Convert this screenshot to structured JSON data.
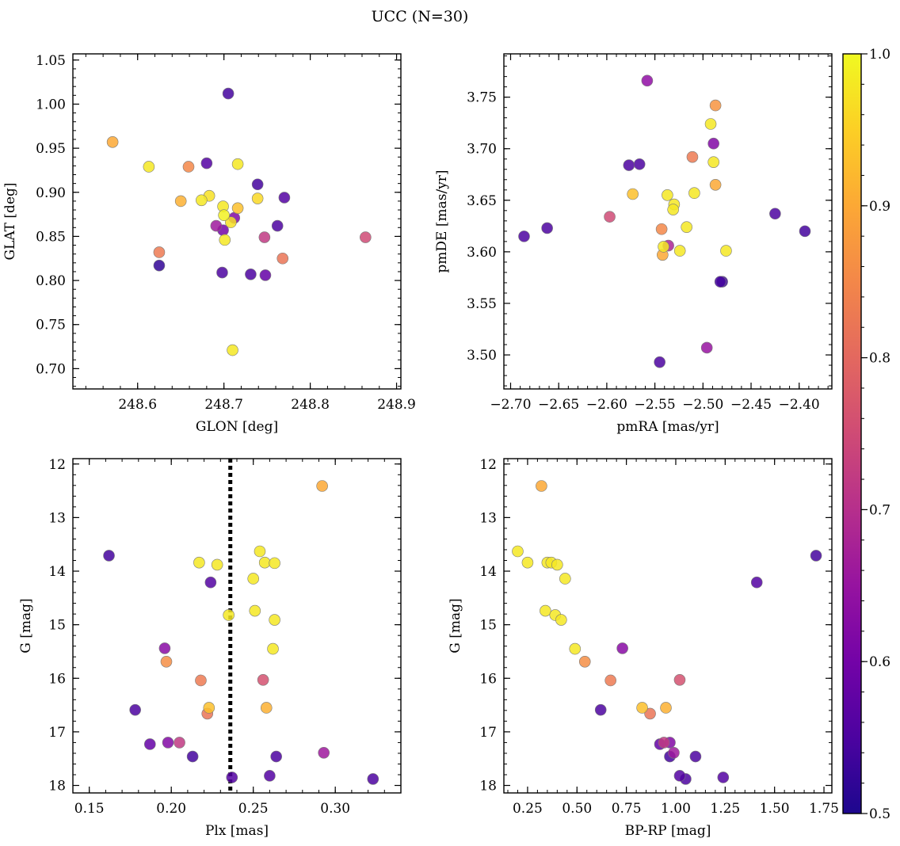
{
  "figure": {
    "title": "UCC (N=30)"
  },
  "colorbar": {
    "min": 0.5,
    "max": 1.0,
    "ticks": [
      0.5,
      0.6,
      0.7,
      0.8,
      0.9,
      1.0
    ],
    "tick_labels": [
      "0.5",
      "0.6",
      "0.7",
      "0.8",
      "0.9",
      "1.0"
    ],
    "colormap": "plasma"
  },
  "chart_data": [
    {
      "type": "scatter",
      "xlabel": "GLON [deg]",
      "ylabel": "GLAT [deg]",
      "xlim": [
        248.525,
        248.905
      ],
      "ylim": [
        0.677,
        1.057
      ],
      "xticks": [
        248.6,
        248.7,
        248.8,
        248.9
      ],
      "xtick_labels": [
        "248.6",
        "248.7",
        "248.8",
        "248.9"
      ],
      "yticks": [
        0.7,
        0.75,
        0.8,
        0.85,
        0.9,
        0.95,
        1.0,
        1.05
      ],
      "ytick_labels": [
        "0.70",
        "0.75",
        "0.80",
        "0.85",
        "0.90",
        "0.95",
        "1.00",
        "1.05"
      ],
      "points": [
        {
          "x": 248.705,
          "y": 1.012,
          "c": 0.54
        },
        {
          "x": 248.571,
          "y": 0.957,
          "c": 0.9
        },
        {
          "x": 248.613,
          "y": 0.929,
          "c": 0.98
        },
        {
          "x": 248.659,
          "y": 0.929,
          "c": 0.85
        },
        {
          "x": 248.68,
          "y": 0.933,
          "c": 0.56
        },
        {
          "x": 248.716,
          "y": 0.932,
          "c": 0.98
        },
        {
          "x": 248.739,
          "y": 0.909,
          "c": 0.54
        },
        {
          "x": 248.683,
          "y": 0.896,
          "c": 0.97
        },
        {
          "x": 248.65,
          "y": 0.89,
          "c": 0.91
        },
        {
          "x": 248.674,
          "y": 0.891,
          "c": 0.98
        },
        {
          "x": 248.739,
          "y": 0.893,
          "c": 0.96
        },
        {
          "x": 248.77,
          "y": 0.894,
          "c": 0.56
        },
        {
          "x": 248.699,
          "y": 0.884,
          "c": 0.98
        },
        {
          "x": 248.716,
          "y": 0.882,
          "c": 0.93
        },
        {
          "x": 248.7,
          "y": 0.874,
          "c": 0.99
        },
        {
          "x": 248.712,
          "y": 0.871,
          "c": 0.62
        },
        {
          "x": 248.708,
          "y": 0.866,
          "c": 0.97
        },
        {
          "x": 248.691,
          "y": 0.862,
          "c": 0.66
        },
        {
          "x": 248.699,
          "y": 0.857,
          "c": 0.6
        },
        {
          "x": 248.762,
          "y": 0.862,
          "c": 0.55
        },
        {
          "x": 248.701,
          "y": 0.846,
          "c": 0.98
        },
        {
          "x": 248.747,
          "y": 0.849,
          "c": 0.72
        },
        {
          "x": 248.864,
          "y": 0.849,
          "c": 0.75
        },
        {
          "x": 248.625,
          "y": 0.832,
          "c": 0.83
        },
        {
          "x": 248.768,
          "y": 0.825,
          "c": 0.82
        },
        {
          "x": 248.625,
          "y": 0.817,
          "c": 0.52
        },
        {
          "x": 248.698,
          "y": 0.809,
          "c": 0.55
        },
        {
          "x": 248.731,
          "y": 0.807,
          "c": 0.55
        },
        {
          "x": 248.748,
          "y": 0.806,
          "c": 0.58
        },
        {
          "x": 248.71,
          "y": 0.721,
          "c": 0.98
        }
      ]
    },
    {
      "type": "scatter",
      "xlabel": "pmRA [mas/yr]",
      "ylabel": "pmDE [mas/yr]",
      "xlim": [
        -2.707,
        -2.366
      ],
      "ylim": [
        3.467,
        3.792
      ],
      "xticks": [
        -2.7,
        -2.65,
        -2.6,
        -2.55,
        -2.5,
        -2.45,
        -2.4
      ],
      "xtick_labels": [
        "−2.70",
        "−2.65",
        "−2.60",
        "−2.55",
        "−2.50",
        "−2.45",
        "−2.40"
      ],
      "yticks": [
        3.5,
        3.55,
        3.6,
        3.65,
        3.7,
        3.75
      ],
      "ytick_labels": [
        "3.50",
        "3.55",
        "3.60",
        "3.65",
        "3.70",
        "3.75"
      ],
      "points": [
        {
          "x": -2.558,
          "y": 3.766,
          "c": 0.64
        },
        {
          "x": -2.487,
          "y": 3.742,
          "c": 0.87
        },
        {
          "x": -2.492,
          "y": 3.724,
          "c": 0.98
        },
        {
          "x": -2.489,
          "y": 3.705,
          "c": 0.62
        },
        {
          "x": -2.511,
          "y": 3.692,
          "c": 0.83
        },
        {
          "x": -2.489,
          "y": 3.687,
          "c": 0.98
        },
        {
          "x": -2.577,
          "y": 3.684,
          "c": 0.55
        },
        {
          "x": -2.566,
          "y": 3.685,
          "c": 0.55
        },
        {
          "x": -2.487,
          "y": 3.665,
          "c": 0.9
        },
        {
          "x": -2.573,
          "y": 3.656,
          "c": 0.93
        },
        {
          "x": -2.537,
          "y": 3.655,
          "c": 0.98
        },
        {
          "x": -2.509,
          "y": 3.657,
          "c": 0.98
        },
        {
          "x": -2.53,
          "y": 3.646,
          "c": 0.98
        },
        {
          "x": -2.531,
          "y": 3.641,
          "c": 0.98
        },
        {
          "x": -2.425,
          "y": 3.637,
          "c": 0.55
        },
        {
          "x": -2.597,
          "y": 3.634,
          "c": 0.75
        },
        {
          "x": -2.517,
          "y": 3.624,
          "c": 0.98
        },
        {
          "x": -2.543,
          "y": 3.622,
          "c": 0.85
        },
        {
          "x": -2.662,
          "y": 3.623,
          "c": 0.55
        },
        {
          "x": -2.686,
          "y": 3.615,
          "c": 0.55
        },
        {
          "x": -2.394,
          "y": 3.62,
          "c": 0.54
        },
        {
          "x": -2.536,
          "y": 3.606,
          "c": 0.68
        },
        {
          "x": -2.541,
          "y": 3.605,
          "c": 0.98
        },
        {
          "x": -2.542,
          "y": 3.597,
          "c": 0.9
        },
        {
          "x": -2.524,
          "y": 3.601,
          "c": 0.98
        },
        {
          "x": -2.476,
          "y": 3.601,
          "c": 0.98
        },
        {
          "x": -2.482,
          "y": 3.571,
          "c": 0.54
        },
        {
          "x": -2.48,
          "y": 3.571,
          "c": 0.53
        },
        {
          "x": -2.496,
          "y": 3.507,
          "c": 0.65
        },
        {
          "x": -2.545,
          "y": 3.493,
          "c": 0.55
        }
      ]
    },
    {
      "type": "scatter",
      "xlabel": "Plx [mas]",
      "ylabel": "G [mag]",
      "xlim": [
        0.14,
        0.34
      ],
      "ylim": [
        18.14,
        11.9
      ],
      "y_inverted": true,
      "xticks": [
        0.15,
        0.2,
        0.25,
        0.3
      ],
      "xtick_labels": [
        "0.15",
        "0.20",
        "0.25",
        "0.30"
      ],
      "yticks": [
        12,
        13,
        14,
        15,
        16,
        17,
        18
      ],
      "ytick_labels": [
        "12",
        "13",
        "14",
        "15",
        "16",
        "17",
        "18"
      ],
      "vline": {
        "x": 0.236,
        "style": "dotted"
      },
      "points": [
        {
          "x": 0.292,
          "y": 12.41,
          "c": 0.9
        },
        {
          "x": 0.254,
          "y": 13.63,
          "c": 0.98
        },
        {
          "x": 0.162,
          "y": 13.71,
          "c": 0.54
        },
        {
          "x": 0.217,
          "y": 13.84,
          "c": 0.98
        },
        {
          "x": 0.257,
          "y": 13.84,
          "c": 0.98
        },
        {
          "x": 0.263,
          "y": 13.85,
          "c": 0.98
        },
        {
          "x": 0.228,
          "y": 13.88,
          "c": 0.98
        },
        {
          "x": 0.224,
          "y": 14.21,
          "c": 0.56
        },
        {
          "x": 0.25,
          "y": 14.14,
          "c": 0.98
        },
        {
          "x": 0.251,
          "y": 14.74,
          "c": 0.98
        },
        {
          "x": 0.235,
          "y": 14.82,
          "c": 0.98
        },
        {
          "x": 0.263,
          "y": 14.91,
          "c": 0.98
        },
        {
          "x": 0.196,
          "y": 15.44,
          "c": 0.63
        },
        {
          "x": 0.262,
          "y": 15.45,
          "c": 0.98
        },
        {
          "x": 0.197,
          "y": 15.69,
          "c": 0.86
        },
        {
          "x": 0.218,
          "y": 16.04,
          "c": 0.83
        },
        {
          "x": 0.256,
          "y": 16.03,
          "c": 0.76
        },
        {
          "x": 0.178,
          "y": 16.59,
          "c": 0.55
        },
        {
          "x": 0.223,
          "y": 16.55,
          "c": 0.93
        },
        {
          "x": 0.258,
          "y": 16.55,
          "c": 0.91
        },
        {
          "x": 0.222,
          "y": 16.66,
          "c": 0.82
        },
        {
          "x": 0.187,
          "y": 17.23,
          "c": 0.58
        },
        {
          "x": 0.198,
          "y": 17.2,
          "c": 0.62
        },
        {
          "x": 0.205,
          "y": 17.2,
          "c": 0.72
        },
        {
          "x": 0.213,
          "y": 17.46,
          "c": 0.54
        },
        {
          "x": 0.264,
          "y": 17.46,
          "c": 0.55
        },
        {
          "x": 0.293,
          "y": 17.39,
          "c": 0.66
        },
        {
          "x": 0.237,
          "y": 17.85,
          "c": 0.56
        },
        {
          "x": 0.26,
          "y": 17.82,
          "c": 0.56
        },
        {
          "x": 0.323,
          "y": 17.88,
          "c": 0.55
        }
      ]
    },
    {
      "type": "scatter",
      "xlabel": "BP-RP [mag]",
      "ylabel": "G [mag]",
      "xlim": [
        0.13,
        1.79
      ],
      "ylim": [
        18.14,
        11.9
      ],
      "y_inverted": true,
      "xticks": [
        0.25,
        0.5,
        0.75,
        1.0,
        1.25,
        1.5,
        1.75
      ],
      "xtick_labels": [
        "0.25",
        "0.50",
        "0.75",
        "1.00",
        "1.25",
        "1.50",
        "1.75"
      ],
      "yticks": [
        12,
        13,
        14,
        15,
        16,
        17,
        18
      ],
      "ytick_labels": [
        "12",
        "13",
        "14",
        "15",
        "16",
        "17",
        "18"
      ],
      "points": [
        {
          "x": 0.32,
          "y": 12.41,
          "c": 0.9
        },
        {
          "x": 0.2,
          "y": 13.63,
          "c": 0.98
        },
        {
          "x": 0.25,
          "y": 13.84,
          "c": 0.98
        },
        {
          "x": 0.35,
          "y": 13.84,
          "c": 0.98
        },
        {
          "x": 0.37,
          "y": 13.84,
          "c": 0.98
        },
        {
          "x": 0.4,
          "y": 13.88,
          "c": 0.98
        },
        {
          "x": 0.44,
          "y": 14.14,
          "c": 0.98
        },
        {
          "x": 1.71,
          "y": 13.71,
          "c": 0.54
        },
        {
          "x": 1.41,
          "y": 14.21,
          "c": 0.56
        },
        {
          "x": 0.34,
          "y": 14.74,
          "c": 0.98
        },
        {
          "x": 0.39,
          "y": 14.82,
          "c": 0.98
        },
        {
          "x": 0.42,
          "y": 14.91,
          "c": 0.98
        },
        {
          "x": 0.49,
          "y": 15.45,
          "c": 0.98
        },
        {
          "x": 0.73,
          "y": 15.44,
          "c": 0.63
        },
        {
          "x": 0.54,
          "y": 15.69,
          "c": 0.86
        },
        {
          "x": 0.67,
          "y": 16.04,
          "c": 0.83
        },
        {
          "x": 1.02,
          "y": 16.03,
          "c": 0.76
        },
        {
          "x": 0.62,
          "y": 16.59,
          "c": 0.55
        },
        {
          "x": 0.83,
          "y": 16.55,
          "c": 0.93
        },
        {
          "x": 0.95,
          "y": 16.55,
          "c": 0.91
        },
        {
          "x": 0.87,
          "y": 16.66,
          "c": 0.82
        },
        {
          "x": 0.92,
          "y": 17.23,
          "c": 0.58
        },
        {
          "x": 0.94,
          "y": 17.2,
          "c": 0.72
        },
        {
          "x": 0.97,
          "y": 17.2,
          "c": 0.62
        },
        {
          "x": 0.97,
          "y": 17.46,
          "c": 0.54
        },
        {
          "x": 0.99,
          "y": 17.39,
          "c": 0.66
        },
        {
          "x": 1.1,
          "y": 17.46,
          "c": 0.55
        },
        {
          "x": 1.02,
          "y": 17.82,
          "c": 0.56
        },
        {
          "x": 1.05,
          "y": 17.88,
          "c": 0.55
        },
        {
          "x": 1.24,
          "y": 17.85,
          "c": 0.56
        }
      ]
    }
  ]
}
